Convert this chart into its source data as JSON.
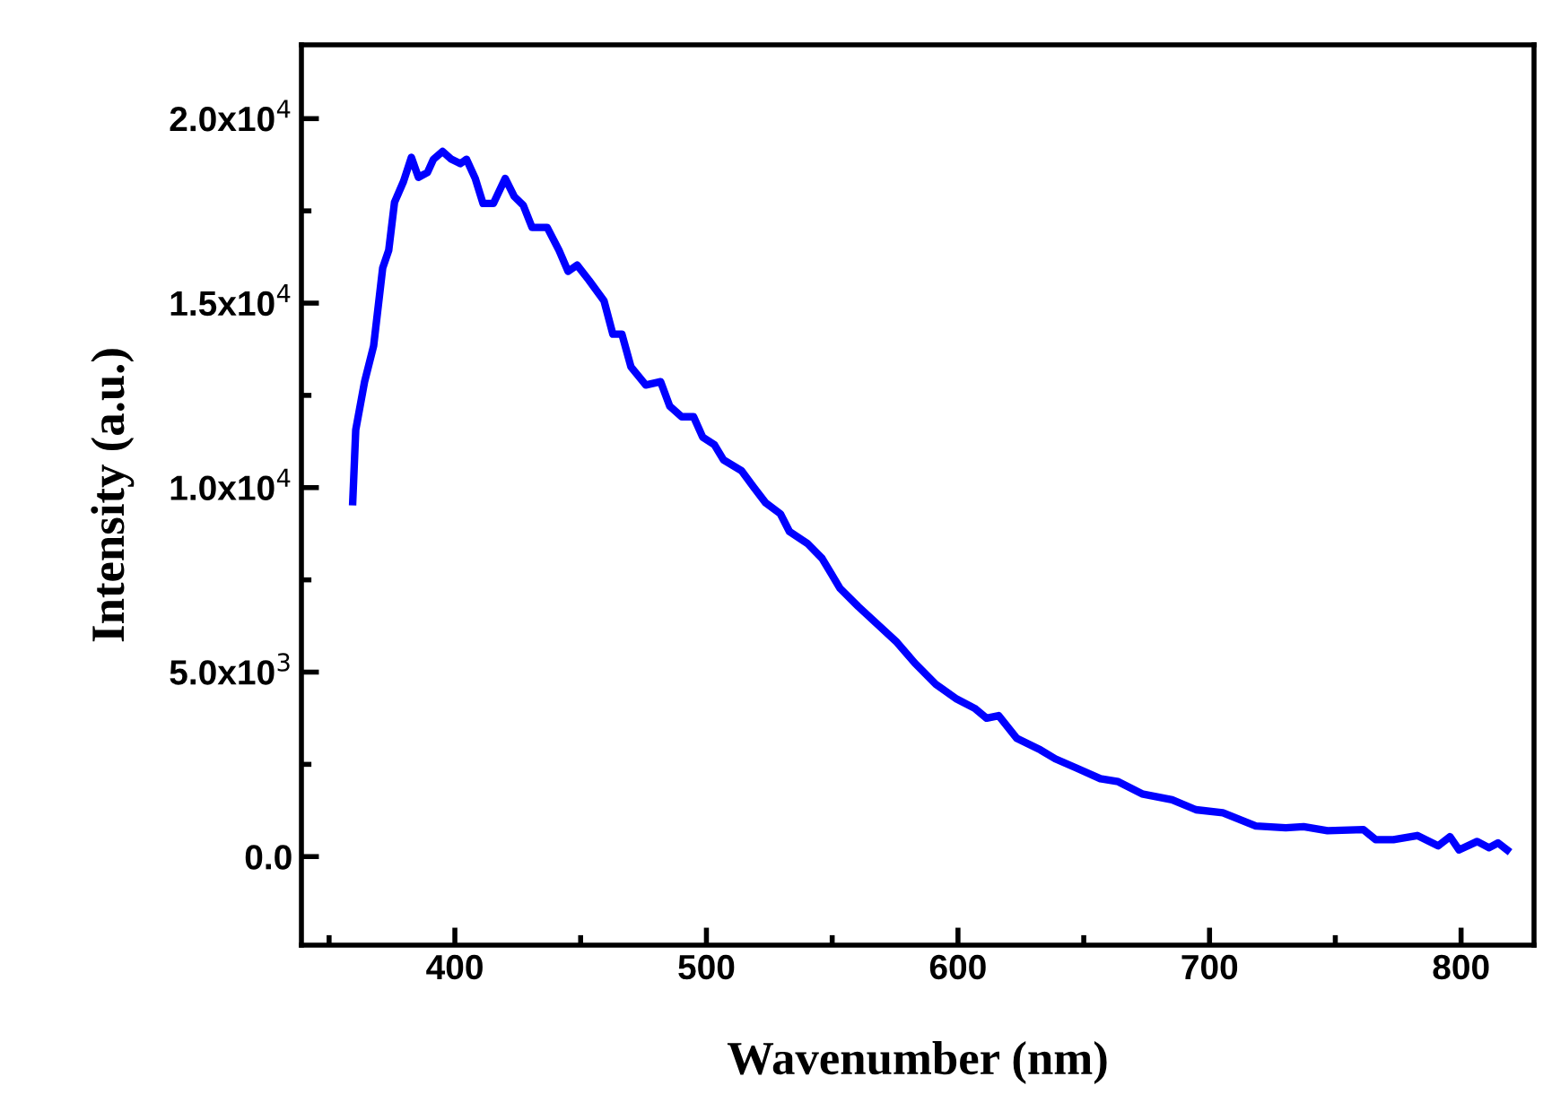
{
  "chart_data": {
    "type": "line",
    "xlabel": "Wavenumber (nm)",
    "ylabel": "Intensity (a.u.)",
    "xlim": [
      339,
      829
    ],
    "ylim": [
      -2400,
      22000
    ],
    "xticks": [
      {
        "value": 350,
        "label": null
      },
      400,
      {
        "value": 450,
        "label": null
      },
      500,
      {
        "value": 550,
        "label": null
      },
      600,
      {
        "value": 650,
        "label": null
      },
      700,
      {
        "value": 750,
        "label": null
      },
      800
    ],
    "yticks": [
      {
        "value": 0,
        "label": "0.0"
      },
      {
        "value": 2500,
        "label": null
      },
      {
        "value": 5000,
        "label": "5.0x10$^{3}$"
      },
      {
        "value": 7500,
        "label": null
      },
      {
        "value": 10000,
        "label": "1.0x10$^{4}$"
      },
      {
        "value": 12500,
        "label": null
      },
      {
        "value": 15000,
        "label": "1.5x10$^{4}$"
      },
      {
        "value": 17500,
        "label": null
      },
      {
        "value": 20000,
        "label": "2.0x10$^{4}$"
      }
    ],
    "grid": false,
    "legend": false,
    "marker": "none",
    "line_style": "solid",
    "series": [
      {
        "color": "#0000ff",
        "x": [
          359.4,
          360.6,
          364.1,
          367.7,
          371.3,
          373.7,
          376,
          379.6,
          382.7,
          385.5,
          389.1,
          391.5,
          395.1,
          398.6,
          402.2,
          404.6,
          408.1,
          411.2,
          415.3,
          420,
          423.6,
          427.2,
          430.7,
          436.7,
          441.4,
          445,
          448.6,
          453.3,
          459.3,
          462.8,
          466.4,
          470,
          475.9,
          481.8,
          485.4,
          490.2,
          494.9,
          498.5,
          503.2,
          506.8,
          513.9,
          518.7,
          523.5,
          529.4,
          533,
          540.1,
          546,
          549.6,
          553.1,
          560.3,
          575.7,
          582.9,
          591.2,
          599.5,
          606.6,
          611.4,
          616.2,
          623.3,
          632.8,
          638.7,
          647.1,
          656.6,
          663.7,
          673.2,
          685.1,
          694.6,
          705.3,
          718.4,
          730.3,
          737.4,
          746.9,
          761.2,
          766,
          773.1,
          782.6,
          790.9,
          795.6,
          799.2,
          806.4,
          811.1,
          814.7,
          818.3
        ],
        "values": [
          9620,
          11570,
          12870,
          13840,
          15950,
          16430,
          17730,
          18300,
          18950,
          18410,
          18540,
          18900,
          19110,
          18900,
          18780,
          18900,
          18380,
          17700,
          17700,
          18380,
          17890,
          17650,
          17050,
          17050,
          16430,
          15860,
          16030,
          15620,
          15060,
          14160,
          14160,
          13270,
          12780,
          12870,
          12210,
          11920,
          11920,
          11370,
          11160,
          10750,
          10460,
          10020,
          9590,
          9290,
          8810,
          8490,
          8080,
          7670,
          7270,
          6780,
          5810,
          5240,
          4670,
          4270,
          4020,
          3750,
          3820,
          3210,
          2890,
          2650,
          2400,
          2110,
          2030,
          1700,
          1540,
          1270,
          1190,
          830,
          780,
          810,
          700,
          730,
          460,
          460,
          570,
          290,
          540,
          180,
          410,
          240,
          370,
          180
        ]
      }
    ]
  }
}
